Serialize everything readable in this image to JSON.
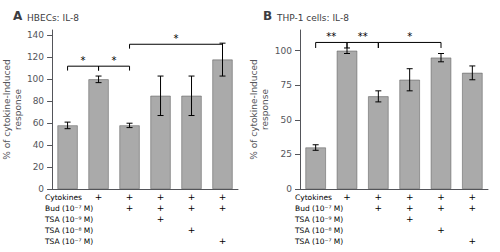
{
  "chart_data": [
    {
      "type": "bar",
      "panel": "A",
      "title": "HBECs: IL-8",
      "ylabel": "% of cytokine-Induced\nresponse",
      "categories": [
        null,
        null,
        null,
        null,
        null,
        null
      ],
      "values": [
        58,
        100,
        58,
        85,
        85,
        118
      ],
      "errors": [
        3,
        3,
        2,
        18,
        18,
        15
      ],
      "color": "#aaaaaa",
      "ylim": [
        0,
        145
      ],
      "yticks": [
        0,
        20,
        40,
        60,
        80,
        100,
        120,
        140
      ],
      "grid": false,
      "annotations": [
        {
          "x1": 0,
          "x2": 1,
          "y": 112,
          "text": "*"
        },
        {
          "x1": 1,
          "x2": 2,
          "y": 112,
          "text": "*"
        },
        {
          "x1": 2,
          "x2": 5,
          "y": 132,
          "text": "*"
        }
      ],
      "table": {
        "rows": [
          "Cytokines",
          "Bud (10⁻⁷ M)",
          "TSA (10⁻⁹ M)",
          "TSA (10⁻⁸ M)",
          "TSA (10⁻⁷ M)"
        ],
        "cells": [
          [
            null,
            "+",
            "+",
            "+",
            "+",
            "+"
          ],
          [
            null,
            null,
            "+",
            "+",
            "+",
            "+"
          ],
          [
            null,
            null,
            null,
            "+",
            null,
            null
          ],
          [
            null,
            null,
            null,
            null,
            "+",
            null
          ],
          [
            null,
            null,
            null,
            null,
            null,
            "+"
          ]
        ]
      }
    },
    {
      "type": "bar",
      "panel": "B",
      "title": "THP-1 cells: IL-8",
      "ylabel": "% of cytokine-Induced\nresponse",
      "categories": [
        null,
        null,
        null,
        null,
        null,
        null
      ],
      "values": [
        30,
        100,
        67,
        79,
        95,
        84
      ],
      "errors": [
        2,
        2,
        4,
        8,
        3,
        5
      ],
      "color": "#aaaaaa",
      "ylim": [
        0,
        115
      ],
      "yticks": [
        0,
        25,
        50,
        75,
        100
      ],
      "grid": false,
      "annotations": [
        {
          "x1": 0,
          "x2": 1,
          "y": 106,
          "text": "**"
        },
        {
          "x1": 1,
          "x2": 2,
          "y": 106,
          "text": "**"
        },
        {
          "x1": 2,
          "x2": 4,
          "y": 106,
          "text": "*"
        }
      ],
      "table": {
        "rows": [
          "Cytokines",
          "Bud (10⁻⁷ M)",
          "TSA (10⁻⁹ M)",
          "TSA (10⁻⁸ M)",
          "TSA (10⁻⁷ M)"
        ],
        "cells": [
          [
            null,
            "+",
            "+",
            "+",
            "+",
            "+"
          ],
          [
            null,
            null,
            "+",
            "+",
            "+",
            "+"
          ],
          [
            null,
            null,
            null,
            "+",
            null,
            null
          ],
          [
            null,
            null,
            null,
            null,
            "+",
            null
          ],
          [
            null,
            null,
            null,
            null,
            null,
            "+"
          ]
        ]
      }
    }
  ]
}
